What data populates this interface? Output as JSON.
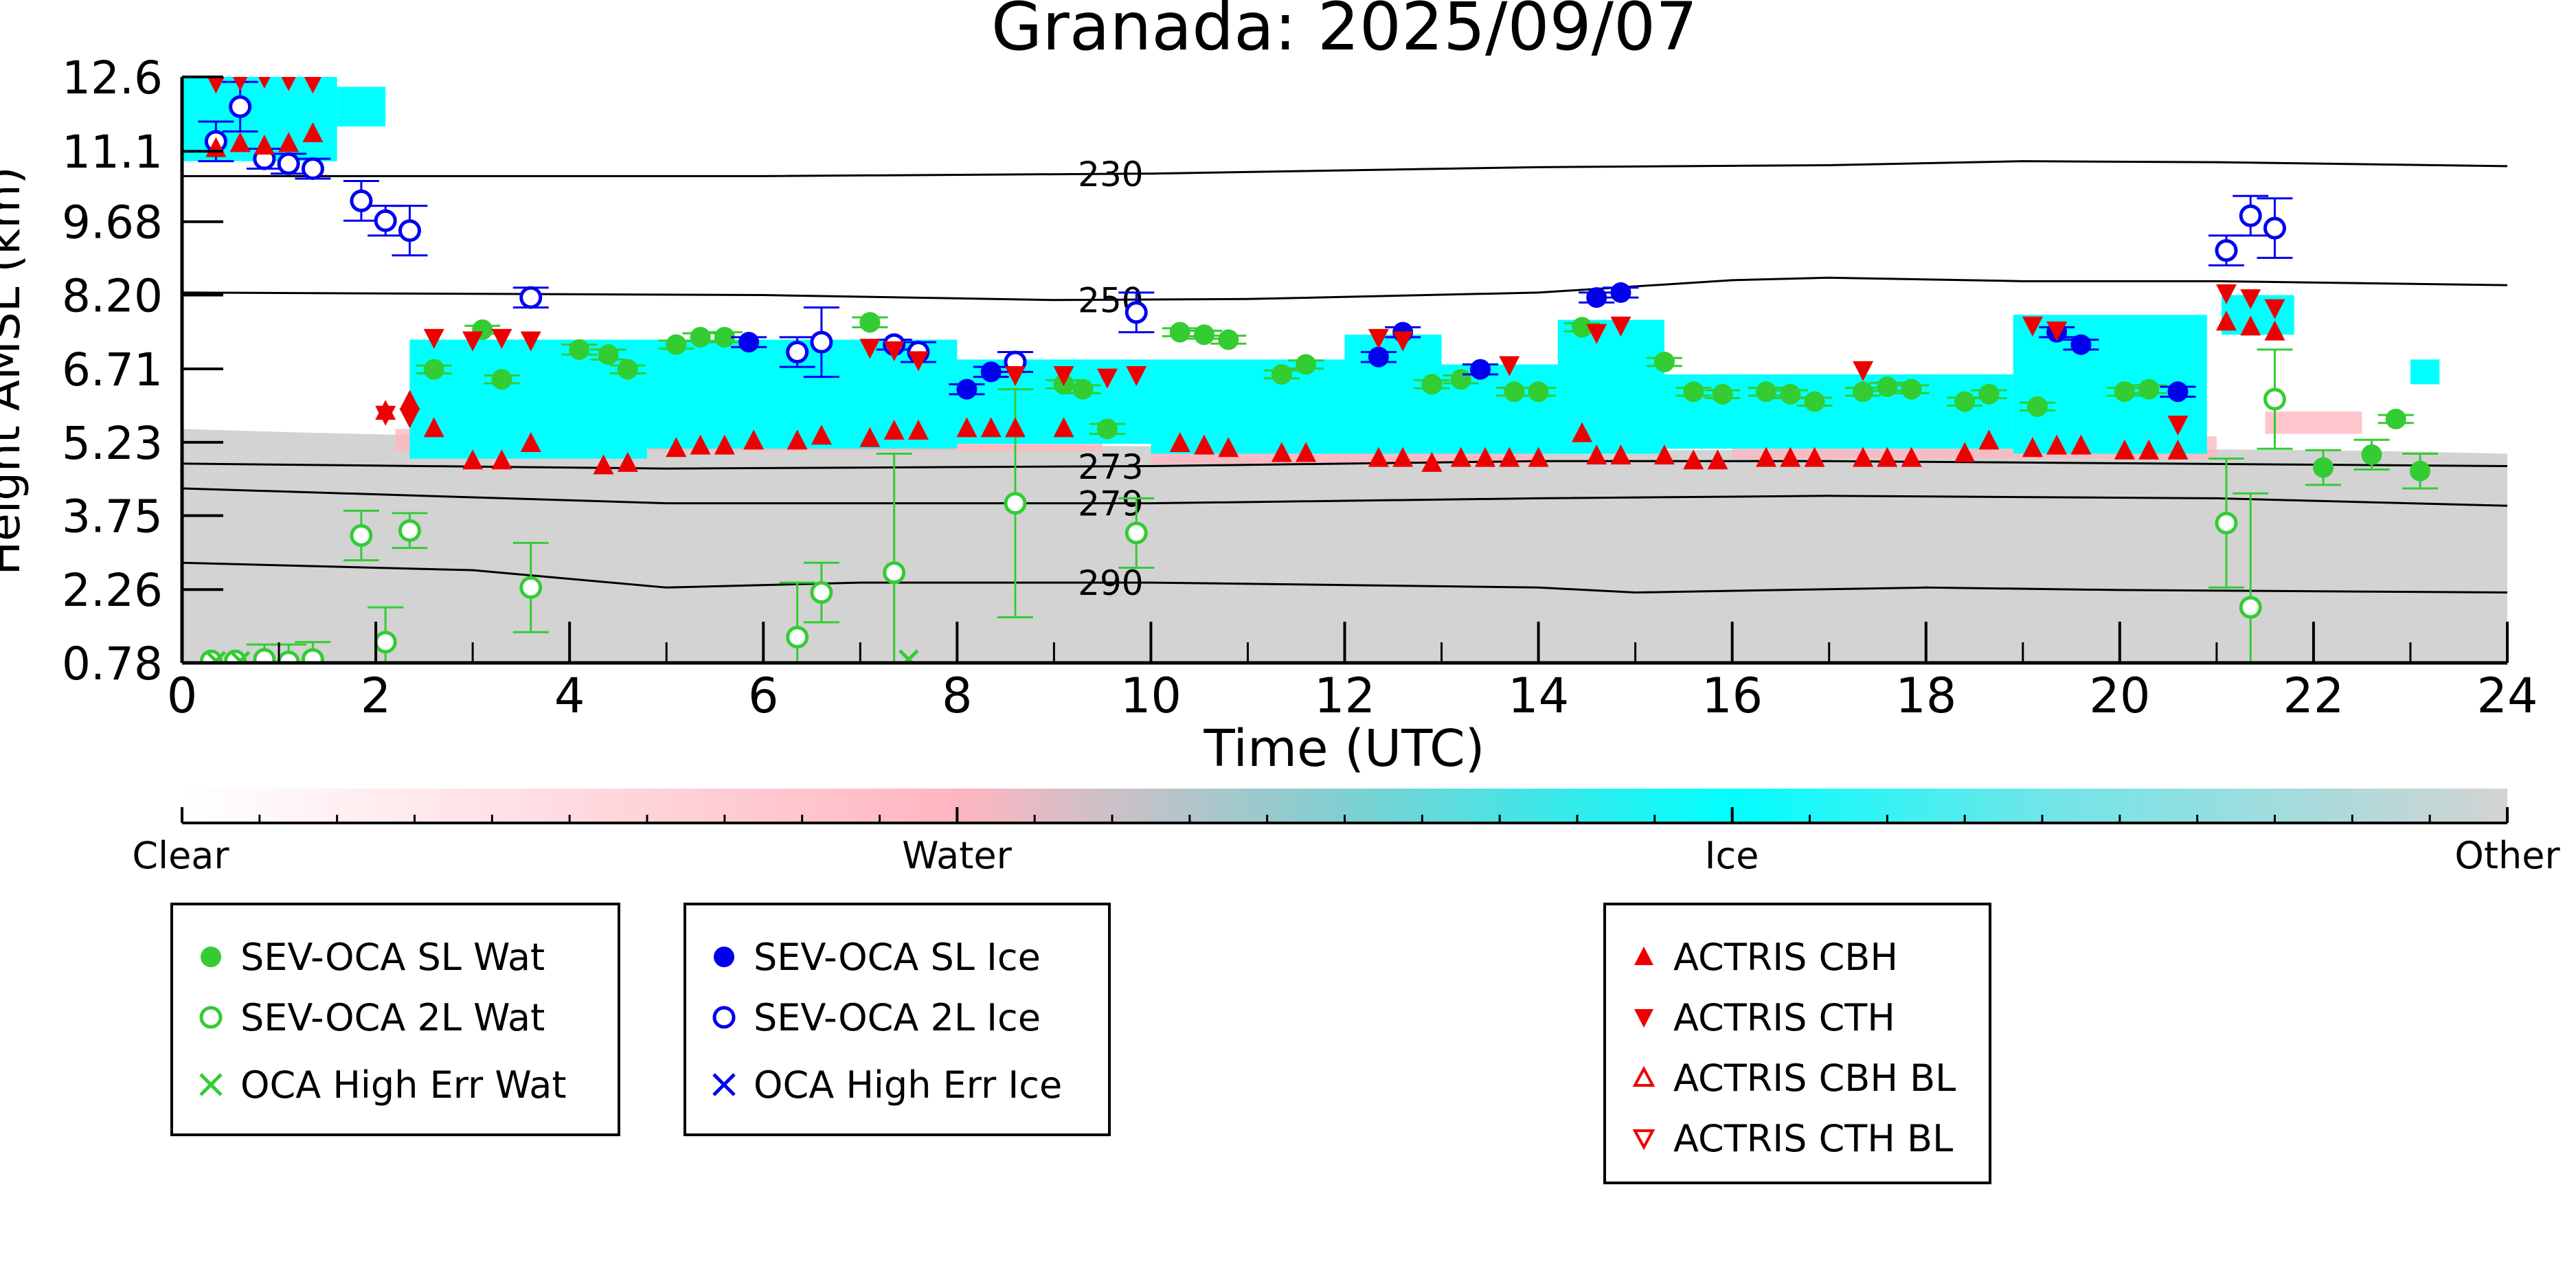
{
  "chart_data": {
    "type": "scatter",
    "title": "Granada: 2025/09/07",
    "xlabel": "Time (UTC)",
    "ylabel": "Height AMSL (km)",
    "xlim": [
      0,
      24
    ],
    "ylim": [
      0.78,
      12.6
    ],
    "xticks": [
      "0",
      "2",
      "4",
      "6",
      "8",
      "10",
      "12",
      "14",
      "16",
      "18",
      "20",
      "22",
      "24"
    ],
    "yticks": [
      "0.78",
      "2.26",
      "3.75",
      "5.23",
      "6.71",
      "8.20",
      "9.68",
      "11.1",
      "12.6"
    ],
    "colorbar": {
      "labels": [
        "Clear",
        "Water",
        "Ice",
        "Other"
      ]
    },
    "isotherm_labels": [
      "230",
      "250",
      "273",
      "279",
      "290"
    ],
    "isotherms": [
      {
        "label": "230",
        "x": [
          0,
          6,
          10,
          14,
          17,
          19,
          21,
          24
        ],
        "y": [
          10.6,
          10.6,
          10.65,
          10.78,
          10.82,
          10.9,
          10.88,
          10.8
        ]
      },
      {
        "label": "250",
        "x": [
          0,
          6,
          9,
          11,
          14,
          16,
          17,
          19,
          21,
          24
        ],
        "y": [
          8.25,
          8.2,
          8.1,
          8.12,
          8.25,
          8.5,
          8.55,
          8.48,
          8.48,
          8.4
        ]
      },
      {
        "label": "273",
        "x": [
          0,
          5,
          10,
          14,
          17,
          24
        ],
        "y": [
          4.8,
          4.7,
          4.75,
          4.85,
          4.85,
          4.75
        ]
      },
      {
        "label": "279",
        "x": [
          0,
          5,
          10,
          14,
          17,
          21,
          24
        ],
        "y": [
          4.3,
          4.0,
          4.0,
          4.1,
          4.15,
          4.1,
          3.95
        ]
      },
      {
        "label": "290",
        "x": [
          0,
          3,
          5,
          7,
          10,
          14,
          15,
          18,
          20,
          24
        ],
        "y": [
          2.8,
          2.65,
          2.3,
          2.4,
          2.4,
          2.3,
          2.2,
          2.3,
          2.25,
          2.2
        ]
      }
    ],
    "series": [
      {
        "name": "SEV-OCA SL Wat",
        "color": "#33cc33",
        "marker": "filled-circle",
        "x": [
          2.6,
          3.1,
          3.3,
          4.1,
          4.4,
          4.6,
          5.1,
          5.35,
          5.6,
          7.1,
          9.1,
          9.3,
          9.55,
          10.3,
          10.55,
          10.8,
          11.35,
          11.6,
          12.9,
          13.2,
          13.75,
          14.0,
          14.45,
          15.3,
          15.6,
          15.9,
          16.35,
          16.6,
          16.85,
          17.35,
          17.6,
          17.85,
          18.4,
          18.65,
          19.15,
          20.05,
          20.3,
          22.1,
          22.6,
          22.85,
          23.1
        ],
        "y": [
          6.7,
          7.5,
          6.5,
          7.1,
          7.0,
          6.7,
          7.2,
          7.35,
          7.35,
          7.65,
          6.4,
          6.3,
          5.5,
          7.45,
          7.4,
          7.3,
          6.6,
          6.8,
          6.4,
          6.5,
          6.25,
          6.25,
          7.55,
          6.85,
          6.25,
          6.2,
          6.25,
          6.2,
          6.05,
          6.25,
          6.35,
          6.3,
          6.05,
          6.2,
          5.95,
          6.25,
          6.3,
          4.72,
          4.98,
          5.7,
          4.65
        ],
        "err": [
          0.08,
          0.08,
          0.08,
          0.1,
          0.1,
          0.08,
          0.08,
          0.08,
          0.1,
          0.1,
          0.08,
          0.08,
          0.1,
          0.08,
          0.08,
          0.08,
          0.08,
          0.08,
          0.08,
          0.08,
          0.08,
          0.08,
          0.08,
          0.08,
          0.08,
          0.08,
          0.08,
          0.08,
          0.08,
          0.08,
          0.08,
          0.08,
          0.08,
          0.08,
          0.08,
          0.08,
          0.08,
          0.35,
          0.3,
          0.08,
          0.35
        ]
      },
      {
        "name": "SEV-OCA 2L Wat",
        "color": "#33cc33",
        "marker": "open-circle",
        "x": [
          0.3,
          0.55,
          0.85,
          1.1,
          1.35,
          1.85,
          2.1,
          2.35,
          3.6,
          6.35,
          6.6,
          7.35,
          8.6,
          9.85,
          21.1,
          21.35,
          21.6
        ],
        "y": [
          0.82,
          0.82,
          0.85,
          0.8,
          0.85,
          3.35,
          1.2,
          3.45,
          2.3,
          1.3,
          2.2,
          2.6,
          4.0,
          3.4,
          3.6,
          1.9,
          6.1
        ],
        "err": [
          0,
          0,
          0.3,
          0.35,
          0.35,
          0.5,
          0.7,
          0.35,
          0.9,
          1.1,
          0.6,
          2.4,
          2.3,
          0.7,
          1.3,
          2.3,
          1.0
        ]
      },
      {
        "name": "OCA High Err Wat",
        "color": "#33cc33",
        "marker": "x",
        "x": [
          0.35,
          0.6,
          7.5
        ],
        "y": [
          0.82,
          0.82,
          0.85
        ]
      },
      {
        "name": "SEV-OCA SL Ice",
        "color": "#0000ee",
        "marker": "filled-circle",
        "x": [
          5.85,
          8.1,
          8.35,
          12.35,
          12.6,
          13.4,
          14.6,
          14.85,
          19.35,
          19.6,
          20.6
        ],
        "y": [
          7.25,
          6.3,
          6.65,
          6.95,
          7.45,
          6.7,
          8.15,
          8.25,
          7.45,
          7.2,
          6.25
        ],
        "err": [
          0.1,
          0.1,
          0.1,
          0.1,
          0.1,
          0.1,
          0.1,
          0.1,
          0.1,
          0.1,
          0.1
        ]
      },
      {
        "name": "SEV-OCA 2L Ice",
        "color": "#0000ee",
        "marker": "open-circle",
        "x": [
          0.35,
          0.6,
          0.85,
          1.1,
          1.35,
          1.85,
          2.1,
          2.35,
          3.6,
          6.35,
          6.6,
          7.35,
          7.6,
          8.6,
          9.85,
          21.1,
          21.35,
          21.6
        ],
        "y": [
          11.3,
          12.0,
          10.95,
          10.85,
          10.75,
          10.1,
          9.7,
          9.5,
          8.15,
          7.05,
          7.25,
          7.2,
          7.05,
          6.85,
          7.85,
          9.1,
          9.8,
          9.55
        ],
        "err": [
          0.4,
          0.5,
          0.2,
          0.2,
          0.2,
          0.4,
          0.3,
          0.5,
          0.2,
          0.3,
          0.7,
          0.1,
          0.2,
          0.2,
          0.4,
          0.3,
          0.4,
          0.6
        ]
      },
      {
        "name": "OCA High Err Ice",
        "color": "#0000ee",
        "marker": "x",
        "x": [],
        "y": []
      },
      {
        "name": "ACTRIS CBH",
        "color": "#ee0000",
        "marker": "triangle-up",
        "x": [
          0.35,
          0.6,
          0.85,
          1.1,
          1.35,
          2.1,
          2.35,
          2.6,
          3.0,
          3.3,
          3.6,
          4.35,
          4.6,
          5.1,
          5.35,
          5.6,
          5.9,
          6.35,
          6.6,
          7.1,
          7.35,
          7.6,
          8.1,
          8.35,
          8.6,
          9.1,
          10.3,
          10.55,
          10.8,
          11.35,
          11.6,
          12.35,
          12.6,
          12.9,
          13.2,
          13.45,
          13.7,
          14.0,
          14.45,
          14.6,
          14.85,
          15.3,
          15.6,
          15.85,
          16.35,
          16.6,
          16.85,
          17.35,
          17.6,
          17.85,
          18.4,
          18.65,
          19.1,
          19.35,
          19.6,
          20.05,
          20.3,
          20.6,
          21.1,
          21.35,
          21.6
        ],
        "y": [
          11.15,
          11.25,
          11.2,
          11.25,
          11.45,
          5.85,
          6.05,
          5.5,
          4.85,
          4.85,
          5.2,
          4.75,
          4.8,
          5.1,
          5.15,
          5.15,
          5.25,
          5.25,
          5.35,
          5.3,
          5.45,
          5.45,
          5.5,
          5.5,
          5.5,
          5.5,
          5.2,
          5.15,
          5.1,
          5.0,
          5.0,
          4.9,
          4.9,
          4.8,
          4.9,
          4.9,
          4.9,
          4.9,
          5.4,
          4.95,
          4.95,
          4.95,
          4.85,
          4.85,
          4.9,
          4.9,
          4.9,
          4.9,
          4.9,
          4.9,
          5.0,
          5.25,
          5.1,
          5.15,
          5.15,
          5.05,
          5.05,
          5.05,
          7.65,
          7.55,
          7.45
        ]
      },
      {
        "name": "ACTRIS CTH",
        "color": "#ee0000",
        "marker": "triangle-down",
        "x": [
          0.35,
          0.6,
          0.85,
          1.1,
          1.35,
          2.1,
          2.35,
          2.6,
          3.0,
          3.3,
          3.6,
          7.1,
          7.35,
          7.6,
          8.6,
          9.1,
          9.55,
          9.85,
          12.35,
          12.6,
          13.7,
          14.6,
          14.85,
          17.35,
          19.1,
          19.35,
          20.6,
          21.1,
          21.35,
          21.6
        ],
        "y": [
          12.5,
          12.55,
          12.6,
          12.55,
          12.5,
          5.8,
          5.75,
          7.35,
          7.3,
          7.35,
          7.3,
          7.15,
          7.1,
          6.9,
          6.6,
          6.6,
          6.55,
          6.6,
          7.35,
          7.3,
          6.8,
          7.45,
          7.6,
          6.7,
          7.6,
          7.5,
          5.6,
          8.25,
          8.15,
          7.95
        ]
      },
      {
        "name": "ACTRIS CBH BL",
        "color": "#ee0000",
        "marker": "open-triangle-up",
        "x": [],
        "y": []
      },
      {
        "name": "ACTRIS CTH BL",
        "color": "#ee0000",
        "marker": "open-triangle-down",
        "x": [],
        "y": []
      }
    ],
    "legend": [
      [
        "SEV-OCA SL Wat",
        "SEV-OCA 2L Wat",
        "OCA High Err Wat"
      ],
      [
        "SEV-OCA SL Ice",
        "SEV-OCA 2L Ice",
        "OCA High Err Ice"
      ],
      [
        "ACTRIS CBH",
        "ACTRIS CTH",
        "ACTRIS CBH BL",
        "ACTRIS CTH BL"
      ]
    ],
    "colors": {
      "clear": "#ffffff",
      "water": "#ffb6c1",
      "ice": "#00ffff",
      "other": "#d3d3d3"
    }
  }
}
